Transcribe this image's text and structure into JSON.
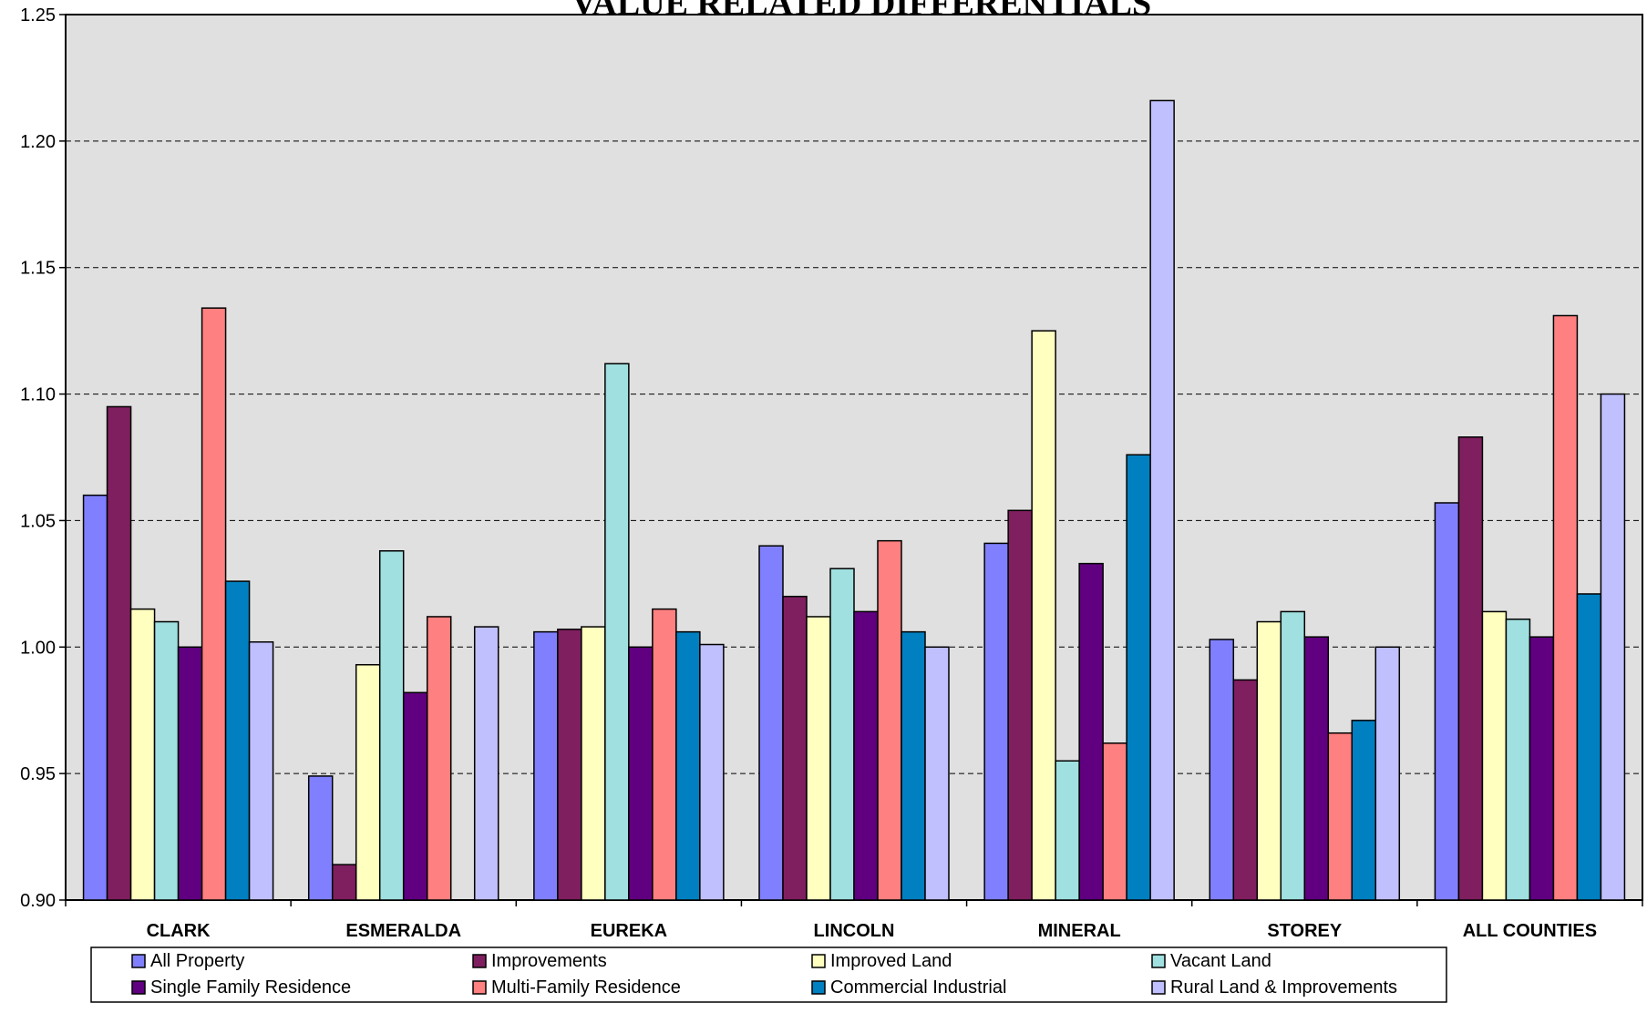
{
  "chart_data": {
    "type": "bar",
    "title": "VALUE RELATED DIFFERENTIALS",
    "categories": [
      "CLARK",
      "ESMERALDA",
      "EUREKA",
      "LINCOLN",
      "MINERAL",
      "STOREY",
      "ALL COUNTIES"
    ],
    "ylim": [
      0.9,
      1.25
    ],
    "yticks": [
      "0.90",
      "0.95",
      "1.00",
      "1.05",
      "1.10",
      "1.15",
      "1.20",
      "1.25"
    ],
    "grid": true,
    "legend_position": "bottom",
    "series": [
      {
        "name": "All Property",
        "color": "#8080ff",
        "values": [
          1.06,
          0.949,
          1.006,
          1.04,
          1.041,
          1.003,
          1.057
        ]
      },
      {
        "name": "Improvements",
        "color": "#7f1f5f",
        "values": [
          1.095,
          0.914,
          1.007,
          1.02,
          1.054,
          0.987,
          1.083
        ]
      },
      {
        "name": "Improved Land",
        "color": "#ffffc0",
        "values": [
          1.015,
          0.993,
          1.008,
          1.012,
          1.125,
          1.01,
          1.014
        ]
      },
      {
        "name": "Vacant Land",
        "color": "#a0e0e0",
        "values": [
          1.01,
          1.038,
          1.112,
          1.031,
          0.955,
          1.014,
          1.011
        ]
      },
      {
        "name": "Single Family Residence",
        "color": "#600080",
        "values": [
          1.0,
          0.982,
          1.0,
          1.014,
          1.033,
          1.004,
          1.004
        ]
      },
      {
        "name": "Multi-Family Residence",
        "color": "#ff8080",
        "values": [
          1.134,
          1.012,
          1.015,
          1.042,
          0.962,
          0.966,
          1.131
        ]
      },
      {
        "name": "Commercial Industrial",
        "color": "#0080c0",
        "values": [
          1.026,
          null,
          1.006,
          1.006,
          1.076,
          0.971,
          1.021
        ]
      },
      {
        "name": "Rural Land & Improvements",
        "color": "#c0c0ff",
        "values": [
          1.002,
          1.008,
          1.001,
          1.0,
          1.216,
          1.0,
          1.1
        ]
      }
    ]
  }
}
